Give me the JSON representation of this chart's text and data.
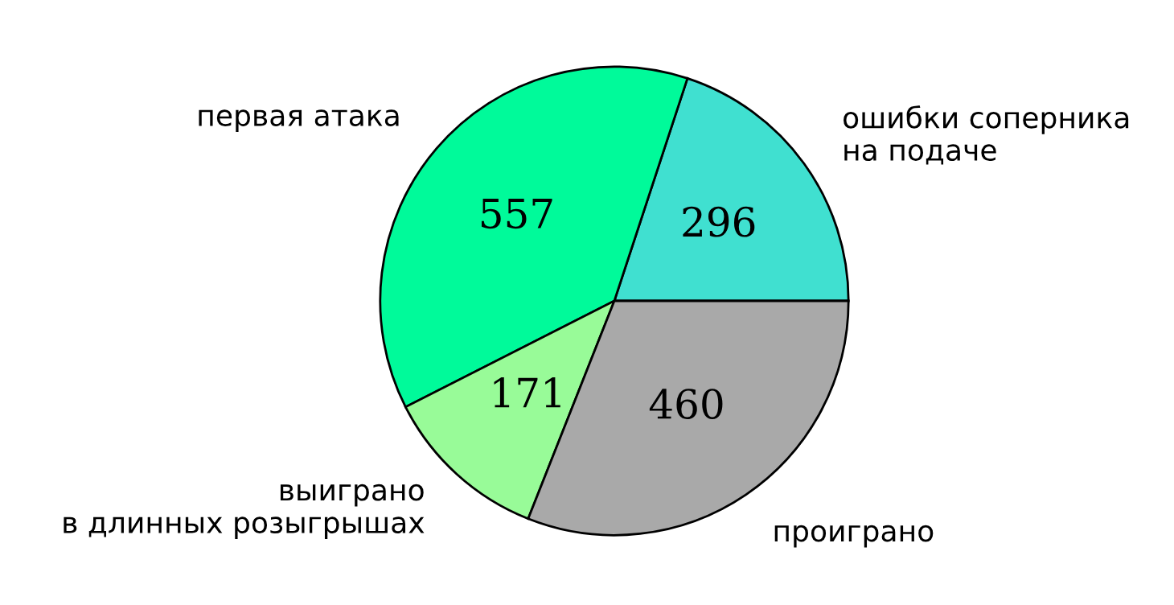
{
  "chart_data": {
    "type": "pie",
    "categories": [
      "ошибки соперника\nна подаче",
      "первая атака",
      "выиграно\nв длинных розыгрышах",
      "проиграно"
    ],
    "values": [
      296,
      557,
      171,
      460
    ],
    "colors": [
      "#40e0d0",
      "#00fa9a",
      "#98fb98",
      "#a9a9a9"
    ],
    "data_labels": true
  }
}
